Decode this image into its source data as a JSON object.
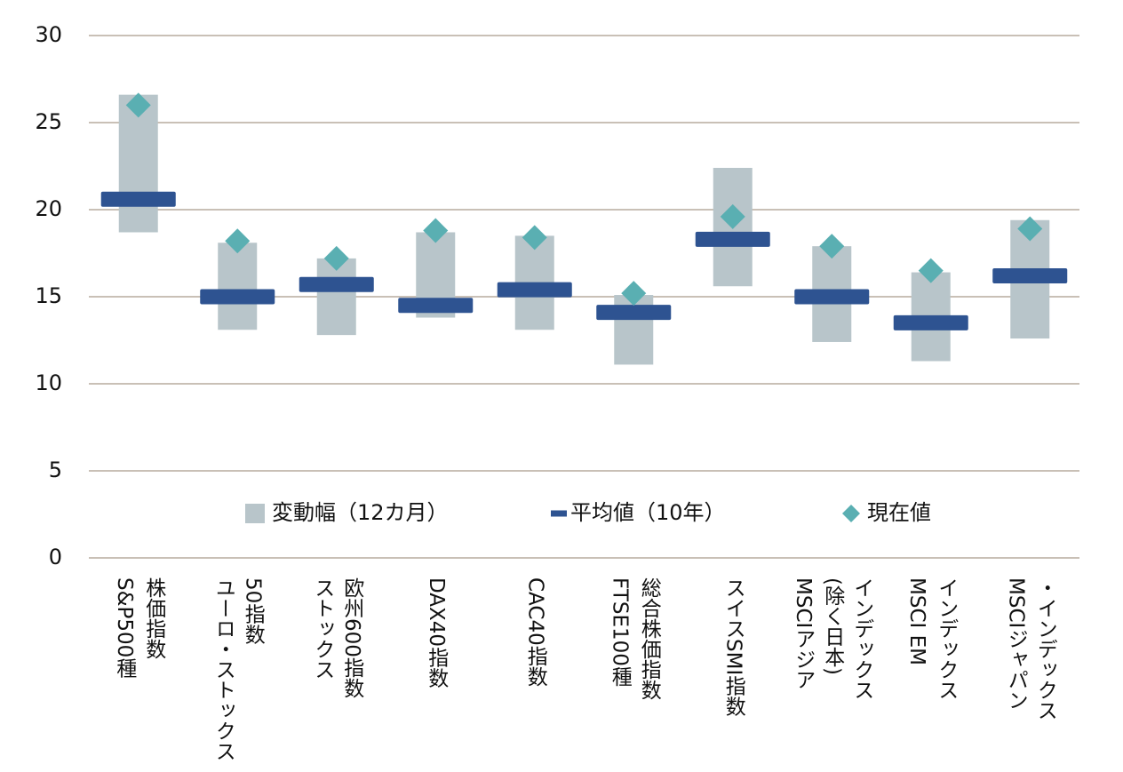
{
  "chart_data": {
    "type": "range-marker",
    "categories": [
      "S&P500種\n株価指数",
      "ユーロ・ストックス\n50指数",
      "ストックス\n欧州600指数",
      "DAX40指数",
      "CAC40指数",
      "FTSE100種\n総合株価指数",
      "スイスSMI指数",
      "MSCIアジア\n(除く日本)\nインデックス",
      "MSCI EM\nインデックス",
      "MSCIジャパン\n・インデックス"
    ],
    "series": [
      {
        "name": "変動幅（12カ月）",
        "color": "#b8c5ca",
        "low": [
          18.7,
          13.1,
          12.8,
          13.8,
          13.1,
          11.1,
          15.6,
          12.4,
          11.3,
          12.6
        ],
        "high": [
          26.6,
          18.1,
          17.2,
          18.7,
          18.5,
          15.1,
          22.4,
          17.9,
          16.4,
          19.4
        ]
      },
      {
        "name": "平均値（10年）",
        "color": "#2e5391",
        "values": [
          20.6,
          15.0,
          15.7,
          14.5,
          15.4,
          14.1,
          18.3,
          15.0,
          13.5,
          16.2
        ]
      },
      {
        "name": "現在値",
        "color": "#5aafb2",
        "values": [
          26.0,
          18.2,
          17.2,
          18.8,
          18.4,
          15.2,
          19.6,
          17.9,
          16.5,
          18.9
        ]
      }
    ],
    "ylim": [
      0,
      30
    ],
    "yticks": [
      0,
      5,
      10,
      15,
      20,
      25,
      30
    ],
    "grid": true
  }
}
